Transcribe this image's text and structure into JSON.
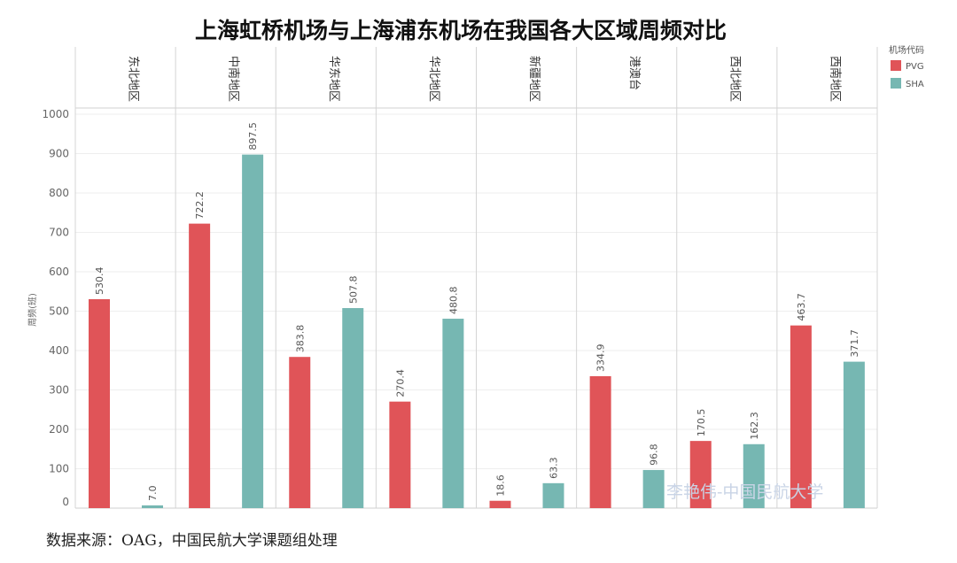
{
  "chart_data": {
    "type": "bar",
    "title": "上海虹桥机场与上海浦东机场在我国各大区域周频对比",
    "xlabel": "",
    "ylabel": "周频(班)",
    "ylim": [
      0,
      1000
    ],
    "yticks": [
      0,
      100,
      200,
      300,
      400,
      500,
      600,
      700,
      800,
      900,
      1000
    ],
    "grid": true,
    "legend_placement": "top-right",
    "categories": [
      "东北地区",
      "中南地区",
      "华东地区",
      "华北地区",
      "新疆地区",
      "港澳台",
      "西北地区",
      "西南地区"
    ],
    "series": [
      {
        "name": "PVG",
        "color": "#e05458",
        "values": [
          530.4,
          722.2,
          383.8,
          270.4,
          18.6,
          334.9,
          170.5,
          463.7
        ],
        "labels": [
          "530.4",
          "722.2",
          "383.8",
          "270.4",
          "18.6",
          "334.9",
          "170.5",
          "463.7"
        ]
      },
      {
        "name": "SHA",
        "color": "#76b7b2",
        "values": [
          7.0,
          897.5,
          507.8,
          480.8,
          63.3,
          96.8,
          162.3,
          371.7
        ],
        "labels": [
          "7.0",
          "897.5",
          "507.8",
          "480.8",
          "63.3",
          "96.8",
          "162.3",
          "371.7"
        ]
      }
    ]
  },
  "legend": {
    "title": "机场代码"
  },
  "watermark": "李艳伟-中国民航大学",
  "source": "数据来源：OAG，中国民航大学课题组处理"
}
